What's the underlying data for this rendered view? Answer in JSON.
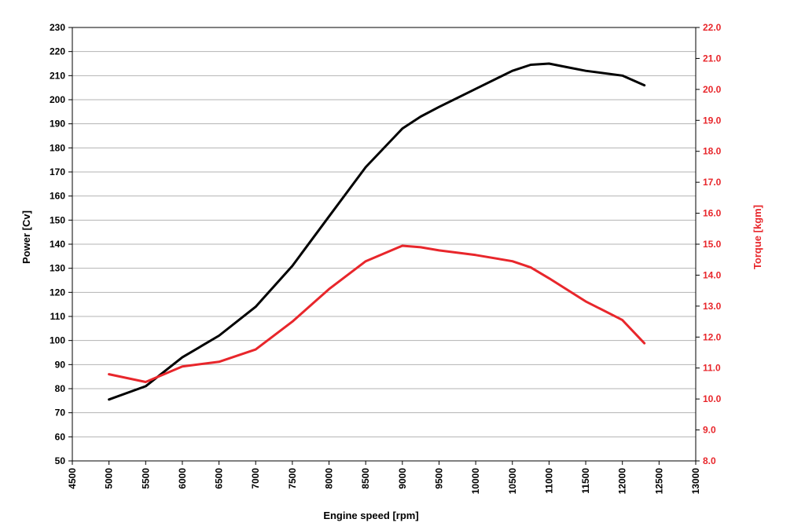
{
  "chart_data": {
    "type": "line",
    "title": "",
    "xlabel": "Engine speed [rpm]",
    "ylabel": "Power [Cv]",
    "y2label": "Torque [kgm]",
    "xlim": [
      4500,
      13000
    ],
    "x_ticks": [
      "4500",
      "5000",
      "5500",
      "6000",
      "6500",
      "7000",
      "7500",
      "8000",
      "8500",
      "9000",
      "9500",
      "10000",
      "10500",
      "11000",
      "11500",
      "12000",
      "12500",
      "13000"
    ],
    "ylim": [
      50,
      230
    ],
    "y_ticks": [
      "50",
      "60",
      "70",
      "80",
      "90",
      "100",
      "110",
      "120",
      "130",
      "140",
      "150",
      "160",
      "170",
      "180",
      "190",
      "200",
      "210",
      "220",
      "230"
    ],
    "y2lim": [
      8.0,
      22.0
    ],
    "y2_ticks": [
      "8.0",
      "9.0",
      "10.0",
      "11.0",
      "12.0",
      "13.0",
      "14.0",
      "15.0",
      "16.0",
      "17.0",
      "18.0",
      "19.0",
      "20.0",
      "21.0",
      "22.0"
    ],
    "grid": "horizontal",
    "legend": "none",
    "colors": {
      "power": "#000000",
      "torque": "#e8262b",
      "right_axis_text": "#e8262b",
      "grid": "#b3b3b3"
    },
    "series": [
      {
        "axis": "left",
        "color": "#000000",
        "x": [
          5000,
          5500,
          6000,
          6500,
          7000,
          7500,
          8000,
          8500,
          9000,
          9250,
          9500,
          10000,
          10500,
          10750,
          11000,
          11250,
          11500,
          12000,
          12300
        ],
        "values": [
          75.5,
          81,
          93,
          102,
          114,
          131,
          151.5,
          172,
          188,
          193,
          197,
          204.5,
          212,
          214.5,
          215,
          213.5,
          212,
          210,
          206
        ]
      },
      {
        "axis": "right",
        "color": "#e8262b",
        "x": [
          5000,
          5500,
          6000,
          6500,
          7000,
          7500,
          8000,
          8500,
          9000,
          9250,
          9500,
          10000,
          10500,
          10750,
          11000,
          11500,
          12000,
          12300
        ],
        "values": [
          10.8,
          10.55,
          11.05,
          11.2,
          11.6,
          12.5,
          13.55,
          14.45,
          14.95,
          14.9,
          14.8,
          14.65,
          14.45,
          14.25,
          13.9,
          13.15,
          12.55,
          11.8
        ]
      }
    ]
  }
}
